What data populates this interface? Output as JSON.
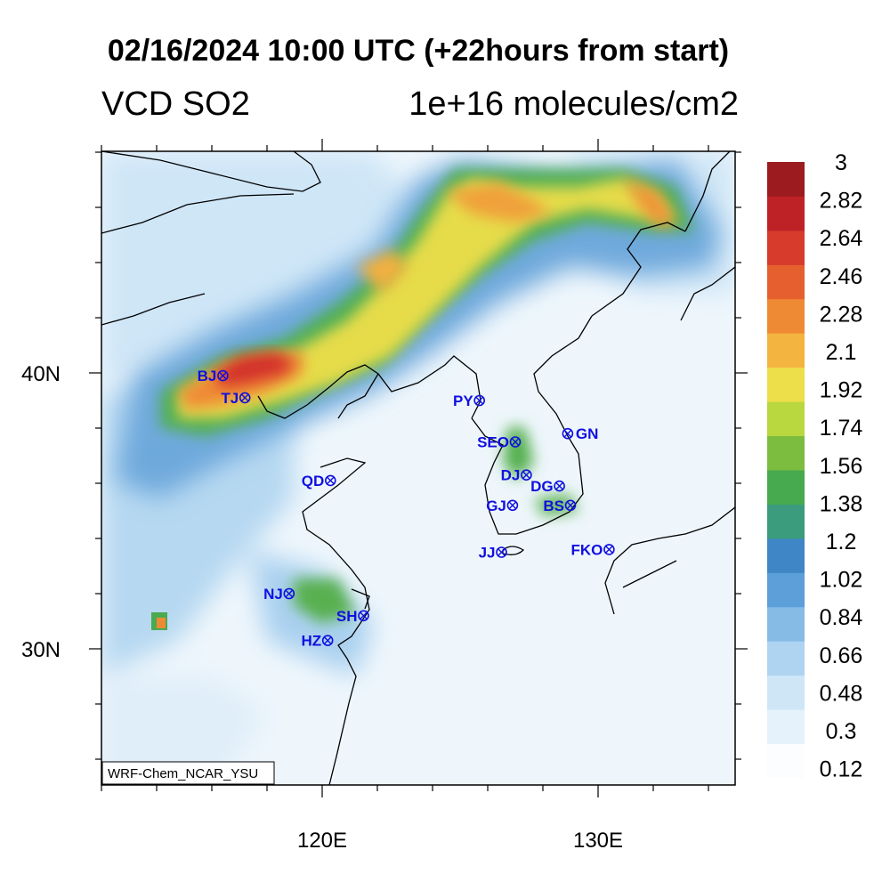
{
  "title": "02/16/2024 10:00 UTC (+22hours from start)",
  "variable": "VCD SO2",
  "units": "1e+16 molecules/cm2",
  "credit": "WRF-Chem_NCAR_YSU",
  "axes": {
    "lat_labels": [
      {
        "lat": 40,
        "text": "40N"
      },
      {
        "lat": 30,
        "text": "30N"
      }
    ],
    "lon_labels": [
      {
        "lon": 120,
        "text": "120E"
      },
      {
        "lon": 130,
        "text": "130E"
      }
    ],
    "lon_range": [
      112,
      135
    ],
    "lat_range": [
      25,
      48
    ]
  },
  "colorbar": {
    "labels": [
      "3",
      "2.82",
      "2.64",
      "2.46",
      "2.28",
      "2.1",
      "1.92",
      "1.74",
      "1.56",
      "1.38",
      "1.2",
      "1.02",
      "0.84",
      "0.66",
      "0.48",
      "0.3",
      "0.12"
    ],
    "colors": [
      "#fbfdff",
      "#e6f2fb",
      "#cfe6f7",
      "#aed4f1",
      "#86bbe6",
      "#5d9fd8",
      "#3f86c6",
      "#3a9c7c",
      "#47aa4f",
      "#7cbd3f",
      "#b9d73f",
      "#ecdf4a",
      "#f4b440",
      "#ef8a34",
      "#e6602f",
      "#d63b2b",
      "#be2226",
      "#9b1b1e"
    ]
  },
  "cities": [
    {
      "code": "BJ",
      "lon": 116.4,
      "lat": 39.9,
      "side": "left"
    },
    {
      "code": "TJ",
      "lon": 117.2,
      "lat": 39.1,
      "side": "left"
    },
    {
      "code": "PY",
      "lon": 125.7,
      "lat": 39.0,
      "side": "left"
    },
    {
      "code": "SEO",
      "lon": 127.0,
      "lat": 37.5,
      "side": "left"
    },
    {
      "code": "GN",
      "lon": 128.9,
      "lat": 37.8,
      "side": "right"
    },
    {
      "code": "QD",
      "lon": 120.3,
      "lat": 36.1,
      "side": "left"
    },
    {
      "code": "DJ",
      "lon": 127.4,
      "lat": 36.3,
      "side": "left"
    },
    {
      "code": "DG",
      "lon": 128.6,
      "lat": 35.9,
      "side": "left"
    },
    {
      "code": "GJ",
      "lon": 126.9,
      "lat": 35.2,
      "side": "left"
    },
    {
      "code": "BS",
      "lon": 129.0,
      "lat": 35.2,
      "side": "left"
    },
    {
      "code": "FKO",
      "lon": 130.4,
      "lat": 33.6,
      "side": "left"
    },
    {
      "code": "JJ",
      "lon": 126.5,
      "lat": 33.5,
      "side": "left"
    },
    {
      "code": "NJ",
      "lon": 118.8,
      "lat": 32.0,
      "side": "left"
    },
    {
      "code": "SH",
      "lon": 121.5,
      "lat": 31.2,
      "side": "left"
    },
    {
      "code": "HZ",
      "lon": 120.2,
      "lat": 30.3,
      "side": "left"
    }
  ],
  "field_features": [
    {
      "name": "main plume",
      "value": 1.6
    },
    {
      "name": "Beijing max",
      "value": 2.6
    },
    {
      "name": "Shanghai plume",
      "value": 1.3
    },
    {
      "name": "Manchuria band",
      "value": 1.9
    }
  ]
}
